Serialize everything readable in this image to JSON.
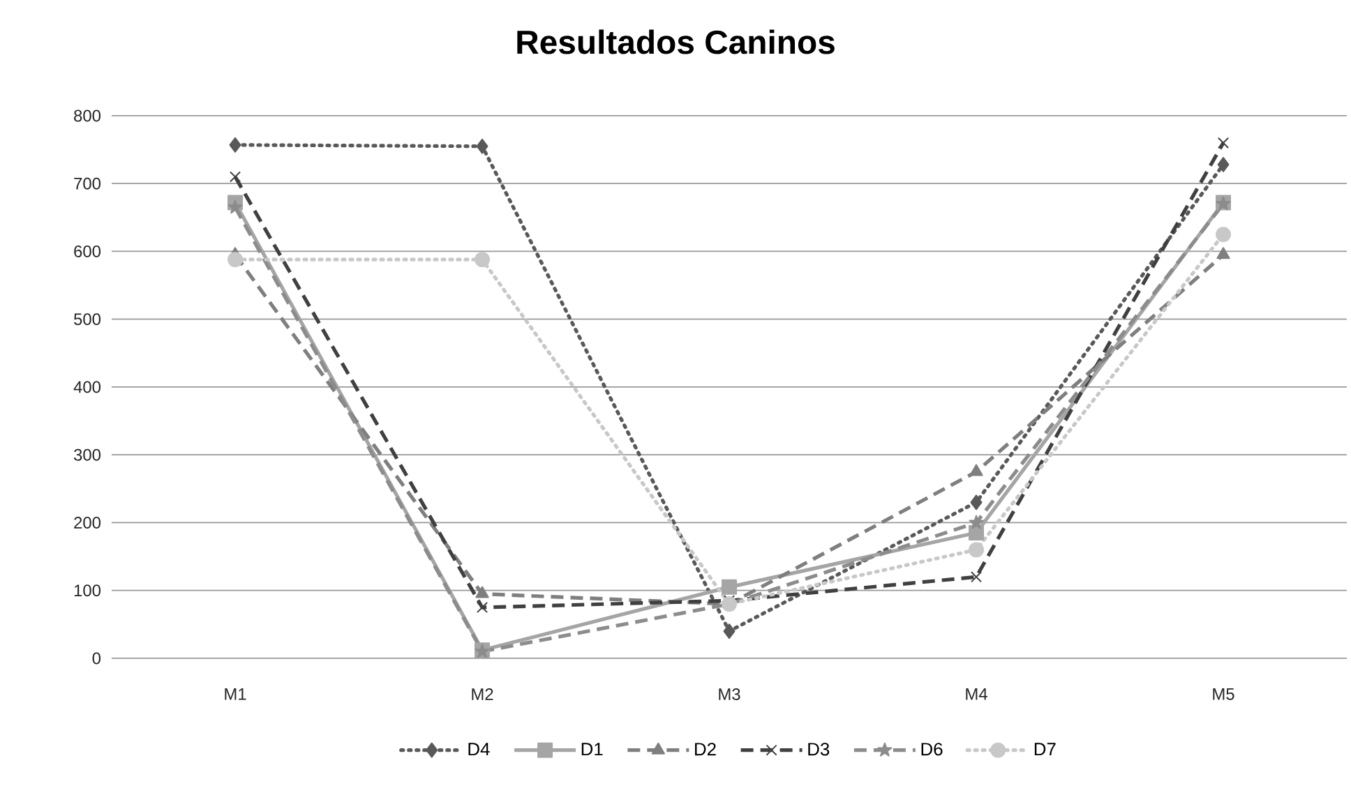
{
  "chart_data": {
    "type": "line",
    "title": "Resultados Caninos",
    "categories": [
      "M1",
      "M2",
      "M3",
      "M4",
      "M5"
    ],
    "series": [
      {
        "name": "D4",
        "color": "#595959",
        "values": [
          757,
          755,
          40,
          230,
          728
        ],
        "marker": "diamond",
        "line_style": "dotted"
      },
      {
        "name": "D1",
        "color": "#a5a5a5",
        "values": [
          672,
          12,
          105,
          185,
          672
        ],
        "marker": "square",
        "line_style": "solid"
      },
      {
        "name": "D2",
        "color": "#7f7f7f",
        "values": [
          595,
          95,
          80,
          275,
          595
        ],
        "marker": "triangle",
        "line_style": "dashed"
      },
      {
        "name": "D3",
        "color": "#404040",
        "values": [
          710,
          75,
          85,
          120,
          760
        ],
        "marker": "cross",
        "line_style": "dashed"
      },
      {
        "name": "D6",
        "color": "#8c8c8c",
        "values": [
          665,
          10,
          80,
          200,
          670
        ],
        "marker": "star",
        "line_style": "dashed"
      },
      {
        "name": "D7",
        "color": "#c8c8c8",
        "values": [
          588,
          588,
          80,
          160,
          625
        ],
        "marker": "circle",
        "line_style": "dotted"
      }
    ],
    "ylim": [
      0,
      800
    ],
    "yticks": [
      0,
      100,
      200,
      300,
      400,
      500,
      600,
      700,
      800
    ],
    "grid": "y",
    "legend": "bottom"
  }
}
